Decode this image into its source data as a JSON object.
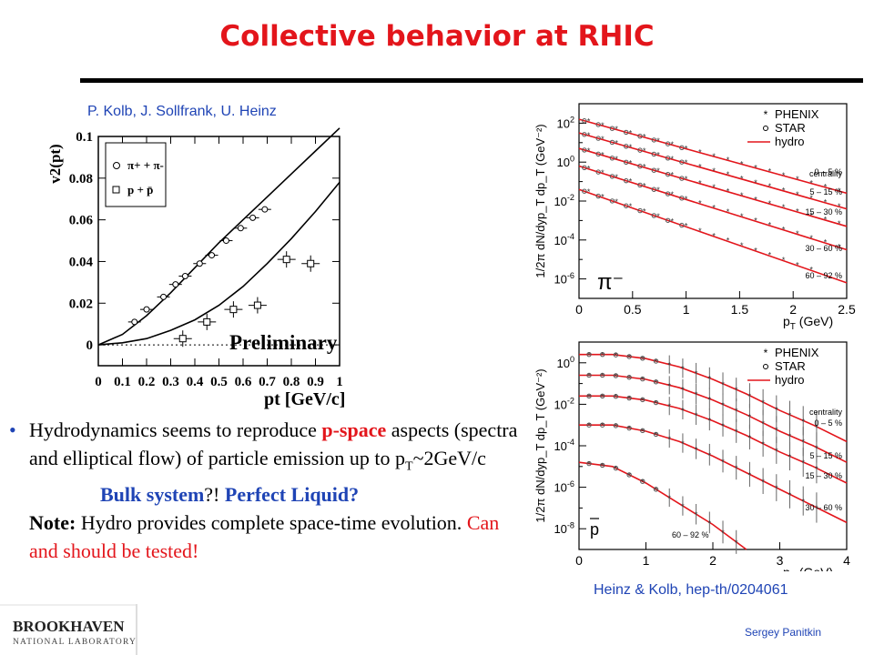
{
  "slide": {
    "title": "Collective behavior at RHIC",
    "credit_top": "P. Kolb, J. Sollfrank, U. Heinz",
    "credit_bottom": "Heinz & Kolb, hep-th/0204061",
    "author": "Sergey Panitkin",
    "logo": {
      "line1": "BROOKHAVEN",
      "line2": "NATIONAL LABORATORY"
    },
    "bullet": {
      "t1": "Hydrodynamics seems to reproduce ",
      "t2": "p-space",
      "t3": " aspects (spectra and elliptical flow) of particle emission up to p",
      "t3_sub": "T",
      "t4": "~2GeV/c",
      "bulk": "Bulk system",
      "q": "?! ",
      "perfect": "Perfect Liquid?",
      "note_label": "Note:",
      "note_text": " Hydro provides complete space-time evolution. ",
      "note_red": "Can and should be tested!"
    },
    "colors": {
      "title": "#e3151b",
      "credit": "#1f44b5",
      "hydro": "#e3151b"
    }
  },
  "chart_data": [
    {
      "type": "scatter",
      "title": "",
      "ylabel": "v2(pt)",
      "xlabel": "pt [GeV/c]",
      "xlim": [
        0,
        1
      ],
      "ylim": [
        -0.01,
        0.1
      ],
      "x_ticks": [
        "0",
        "0.1",
        "0.2",
        "0.3",
        "0.4",
        "0.5",
        "0.6",
        "0.7",
        "0.8",
        "0.9",
        "1"
      ],
      "y_ticks": [
        "0",
        "0.02",
        "0.04",
        "0.06",
        "0.08",
        "0.1"
      ],
      "legend": [
        "π+ + π-",
        "p + p̄"
      ],
      "annotation": "Preliminary",
      "series": [
        {
          "name": "π+ + π-",
          "x": [
            0.15,
            0.2,
            0.27,
            0.32,
            0.36,
            0.42,
            0.47,
            0.53,
            0.59,
            0.64,
            0.69
          ],
          "y": [
            0.011,
            0.017,
            0.023,
            0.029,
            0.033,
            0.039,
            0.043,
            0.05,
            0.056,
            0.061,
            0.065
          ]
        },
        {
          "name": "p + p̄",
          "x": [
            0.35,
            0.45,
            0.56,
            0.66,
            0.78,
            0.88
          ],
          "y": [
            0.003,
            0.011,
            0.017,
            0.019,
            0.041,
            0.039
          ]
        }
      ],
      "curves": [
        {
          "x": [
            0.0,
            0.1,
            0.2,
            0.3,
            0.4,
            0.5,
            0.6,
            0.7,
            0.8,
            0.9,
            1.0
          ],
          "y": [
            0.0,
            0.005,
            0.014,
            0.025,
            0.037,
            0.049,
            0.06,
            0.071,
            0.082,
            0.093,
            0.104
          ]
        },
        {
          "x": [
            0.0,
            0.1,
            0.2,
            0.3,
            0.4,
            0.5,
            0.6,
            0.7,
            0.8,
            0.9,
            1.0
          ],
          "y": [
            0.0,
            0.001,
            0.003,
            0.007,
            0.012,
            0.019,
            0.028,
            0.039,
            0.051,
            0.064,
            0.078
          ]
        }
      ]
    },
    {
      "type": "line",
      "log_y": true,
      "ylabel": "1/2π dN/dyp_T dp_T (GeV^-2)",
      "xlabel": "p_T (GeV)",
      "xlim": [
        0,
        2.5
      ],
      "ylim": [
        1e-07,
        1000.0
      ],
      "x_ticks": [
        "0",
        "0.5",
        "1",
        "1.5",
        "2",
        "2.5"
      ],
      "y_ticks": [
        "10^2",
        "10^0",
        "10^-2",
        "10^-4",
        "10^-6"
      ],
      "particle": "π⁻",
      "legend": [
        "PHENIX",
        "STAR",
        "hydro"
      ],
      "centrality_title": "centrality",
      "centralities": [
        "0 – 5 %",
        "5 – 15 %",
        "15 – 30 %",
        "30 – 60 %",
        "60 – 92 %"
      ],
      "curves": [
        {
          "x": [
            0,
            2.5
          ],
          "logy": [
            2.2,
            -1.6
          ]
        },
        {
          "x": [
            0,
            2.5
          ],
          "logy": [
            1.5,
            -2.4
          ]
        },
        {
          "x": [
            0,
            2.5
          ],
          "logy": [
            0.7,
            -3.3
          ]
        },
        {
          "x": [
            0,
            2.5
          ],
          "logy": [
            -0.2,
            -4.5
          ]
        },
        {
          "x": [
            0,
            2.5
          ],
          "logy": [
            -1.4,
            -6.2
          ]
        }
      ]
    },
    {
      "type": "line",
      "log_y": true,
      "ylabel": "1/2π dN/dyp_T dp_T (GeV^-2)",
      "xlabel": "p_T (GeV)",
      "xlim": [
        0,
        4
      ],
      "ylim": [
        1e-09,
        10.0
      ],
      "x_ticks": [
        "0",
        "1",
        "2",
        "3",
        "4"
      ],
      "y_ticks": [
        "10^0",
        "10^-2",
        "10^-4",
        "10^-6",
        "10^-8"
      ],
      "particle": "p̄",
      "legend": [
        "PHENIX",
        "STAR",
        "hydro"
      ],
      "centrality_title": "centrality",
      "centralities": [
        "0 – 5 %",
        "5 – 15 %",
        "15 – 30 %",
        "30 – 60 %",
        "60 – 92 %"
      ],
      "curves": [
        {
          "x": [
            0,
            0.5,
            1,
            1.5,
            2,
            2.5,
            3,
            3.5,
            4
          ],
          "logy": [
            0.4,
            0.4,
            0.2,
            -0.2,
            -0.8,
            -1.5,
            -2.3,
            -3.0,
            -3.8
          ]
        },
        {
          "x": [
            0,
            0.5,
            1,
            1.5,
            2,
            2.5,
            3,
            3.5,
            4
          ],
          "logy": [
            -0.6,
            -0.6,
            -0.8,
            -1.2,
            -1.8,
            -2.5,
            -3.3,
            -4.0,
            -4.8
          ]
        },
        {
          "x": [
            0,
            0.5,
            1,
            1.5,
            2,
            2.5,
            3,
            3.5,
            4
          ],
          "logy": [
            -1.6,
            -1.6,
            -1.8,
            -2.2,
            -2.8,
            -3.5,
            -4.3,
            -5.0,
            -5.8
          ]
        },
        {
          "x": [
            0,
            0.5,
            1,
            1.5,
            2,
            2.5,
            3,
            3.5,
            4
          ],
          "logy": [
            -3.0,
            -3.0,
            -3.3,
            -3.8,
            -4.5,
            -5.3,
            -6.1,
            -6.9,
            -7.7
          ]
        },
        {
          "x": [
            0,
            0.5,
            1,
            1.5,
            2,
            2.5
          ],
          "logy": [
            -4.8,
            -5.0,
            -5.8,
            -6.8,
            -7.8,
            -9.0
          ]
        }
      ]
    }
  ]
}
